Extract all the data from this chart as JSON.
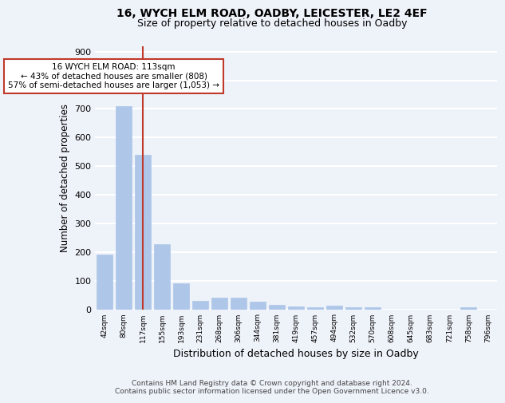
{
  "title1": "16, WYCH ELM ROAD, OADBY, LEICESTER, LE2 4EF",
  "title2": "Size of property relative to detached houses in Oadby",
  "xlabel": "Distribution of detached houses by size in Oadby",
  "ylabel": "Number of detached properties",
  "categories": [
    "42sqm",
    "80sqm",
    "117sqm",
    "155sqm",
    "193sqm",
    "231sqm",
    "268sqm",
    "306sqm",
    "344sqm",
    "381sqm",
    "419sqm",
    "457sqm",
    "494sqm",
    "532sqm",
    "570sqm",
    "608sqm",
    "645sqm",
    "683sqm",
    "721sqm",
    "758sqm",
    "796sqm"
  ],
  "values": [
    190,
    710,
    540,
    228,
    92,
    30,
    40,
    40,
    27,
    14,
    11,
    7,
    12,
    8,
    8,
    0,
    0,
    0,
    0,
    8,
    0
  ],
  "bar_color": "#aec6e8",
  "bar_edge_color": "#aec6e8",
  "vline_x": 2,
  "vline_color": "#c0392b",
  "annotation_text": "16 WYCH ELM ROAD: 113sqm\n← 43% of detached houses are smaller (808)\n57% of semi-detached houses are larger (1,053) →",
  "annotation_box_facecolor": "white",
  "annotation_box_edgecolor": "#c0392b",
  "ylim": [
    0,
    920
  ],
  "yticks": [
    0,
    100,
    200,
    300,
    400,
    500,
    600,
    700,
    800,
    900
  ],
  "footer": "Contains HM Land Registry data © Crown copyright and database right 2024.\nContains public sector information licensed under the Open Government Licence v3.0.",
  "bg_color": "#eef2f9",
  "grid_color": "white"
}
